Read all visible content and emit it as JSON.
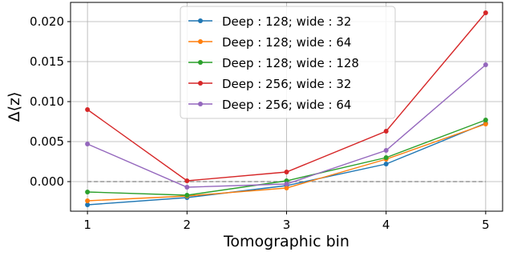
{
  "chart_data": {
    "type": "line",
    "xlabel": "Tomographic bin",
    "ylabel": "Δ⟨z⟩",
    "x": [
      1,
      2,
      3,
      4,
      5
    ],
    "xlim": [
      0.83,
      5.17
    ],
    "ylim": [
      -0.0037,
      0.0224
    ],
    "xticks": [
      1,
      2,
      3,
      4,
      5
    ],
    "xtick_labels": [
      "1",
      "2",
      "3",
      "4",
      "5"
    ],
    "yticks": [
      0.0,
      0.005,
      0.01,
      0.015,
      0.02
    ],
    "ytick_labels": [
      "0.000",
      "0.005",
      "0.010",
      "0.015",
      "0.020"
    ],
    "grid": true,
    "legend_position": "top-center",
    "reference_line": {
      "y": 0,
      "style": "dashed",
      "color": "#808080"
    },
    "series": [
      {
        "name": "Deep : 128; wide : 32",
        "color": "#1f77b4",
        "values": [
          -0.0029,
          -0.002,
          -0.0005,
          0.0022,
          0.0073
        ]
      },
      {
        "name": "Deep : 128; wide : 64",
        "color": "#ff7f0e",
        "values": [
          -0.0024,
          -0.0018,
          -0.0008,
          0.0028,
          0.0072
        ]
      },
      {
        "name": "Deep : 128; wide : 128",
        "color": "#2ca02c",
        "values": [
          -0.0013,
          -0.0017,
          0.0001,
          0.003,
          0.0077
        ]
      },
      {
        "name": "Deep : 256; wide : 32",
        "color": "#d62728",
        "values": [
          0.009,
          0.0001,
          0.0012,
          0.0063,
          0.0211
        ]
      },
      {
        "name": "Deep : 256; wide : 64",
        "color": "#9467bd",
        "values": [
          0.0047,
          -0.0007,
          -0.0003,
          0.0039,
          0.0146
        ]
      }
    ]
  }
}
